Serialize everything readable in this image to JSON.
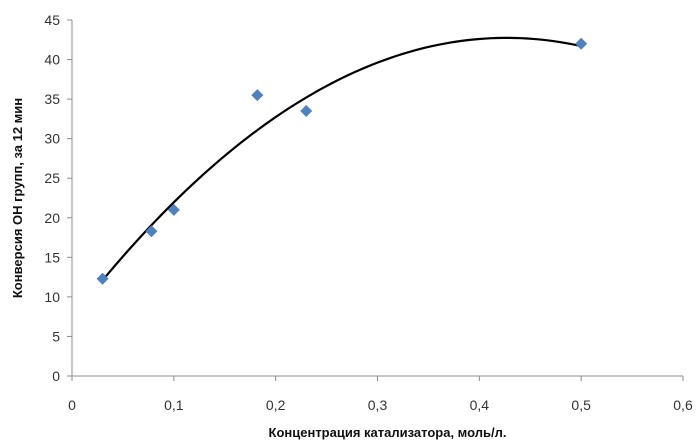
{
  "chart_data": {
    "type": "scatter",
    "title": "",
    "xlabel": "Концентрация  катализатора,  моль/л.",
    "ylabel": "Конверсия  ОН групп, за 12 мин",
    "xlim": [
      0,
      0.6
    ],
    "ylim": [
      0,
      45
    ],
    "x_ticks": [
      0,
      0.1,
      0.2,
      0.3,
      0.4,
      0.5,
      0.6
    ],
    "x_tick_labels": [
      "0",
      "0,1",
      "0,2",
      "0,3",
      "0,4",
      "0,5",
      "0,6"
    ],
    "y_ticks": [
      0,
      5,
      10,
      15,
      20,
      25,
      30,
      35,
      40,
      45
    ],
    "y_tick_labels": [
      "0",
      "5",
      "10",
      "15",
      "20",
      "25",
      "30",
      "35",
      "40",
      "45"
    ],
    "grid": false,
    "legend": "none",
    "series": [
      {
        "marker": "diamond",
        "color": "#4f81bd",
        "x": [
          0.03,
          0.078,
          0.1,
          0.182,
          0.23,
          0.5
        ],
        "y": [
          12.3,
          18.3,
          21.0,
          35.5,
          33.5,
          42.0
        ]
      }
    ],
    "trendline": {
      "type": "polynomial",
      "order": 2,
      "color": "#000000",
      "x_range": [
        0.03,
        0.5
      ],
      "points": [
        [
          0.03,
          11.6
        ],
        [
          0.1,
          22.6
        ],
        [
          0.2,
          33.0
        ],
        [
          0.3,
          39.3
        ],
        [
          0.4,
          42.2
        ],
        [
          0.5,
          42.0
        ]
      ]
    }
  }
}
